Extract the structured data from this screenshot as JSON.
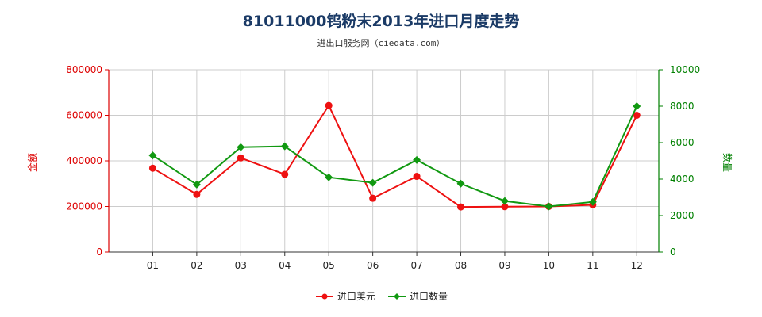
{
  "title": "81011000钨粉末2013年进口月度走势",
  "subtitle": "进出口服务网（ciedata.com）",
  "chart_data": {
    "type": "line",
    "categories": [
      "01",
      "02",
      "03",
      "04",
      "05",
      "06",
      "07",
      "08",
      "09",
      "10",
      "11",
      "12"
    ],
    "y_left": {
      "label": "金额",
      "min": 0,
      "max": 800000,
      "ticks": [
        0,
        200000,
        400000,
        600000,
        800000
      ],
      "color": "#dd0000"
    },
    "y_right": {
      "label": "数量",
      "min": 0,
      "max": 10000,
      "ticks": [
        0,
        2000,
        4000,
        6000,
        8000,
        10000
      ],
      "color": "#008000"
    },
    "grid": true,
    "legend_position": "bottom",
    "series": [
      {
        "name": "进口美元",
        "axis": "left",
        "color": "#ee1111",
        "marker": "circle",
        "values": [
          368000,
          253000,
          413000,
          341000,
          643000,
          236000,
          332000,
          198000,
          199000,
          200000,
          207000,
          600000
        ]
      },
      {
        "name": "进口数量",
        "axis": "right",
        "color": "#119911",
        "marker": "diamond",
        "values": [
          5300,
          3700,
          5750,
          5800,
          4100,
          3800,
          5050,
          3750,
          2800,
          2500,
          2750,
          8000
        ]
      }
    ]
  }
}
